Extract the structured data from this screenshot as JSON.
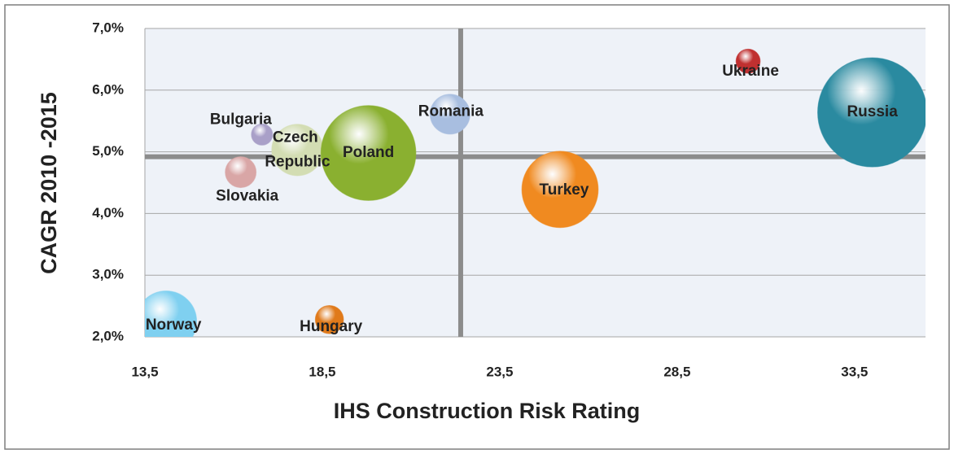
{
  "chart_data": {
    "type": "bubble",
    "xlabel": "IHS Construction Risk Rating",
    "ylabel": "CAGR 2010 -2015",
    "xlim": [
      13.5,
      35.5
    ],
    "ylim": [
      2,
      7
    ],
    "xticks": [
      {
        "value": 13.5,
        "label": "13,5"
      },
      {
        "value": 18.5,
        "label": "18,5"
      },
      {
        "value": 23.5,
        "label": "23,5"
      },
      {
        "value": 28.5,
        "label": "28,5"
      },
      {
        "value": 33.5,
        "label": "33,5"
      }
    ],
    "yticks": [
      {
        "value": 2,
        "label": "2,0%"
      },
      {
        "value": 3,
        "label": "3,0%"
      },
      {
        "value": 4,
        "label": "4,0%"
      },
      {
        "value": 5,
        "label": "5,0%"
      },
      {
        "value": 6,
        "label": "6,0%"
      },
      {
        "value": 7,
        "label": "7,0%"
      }
    ],
    "grid": true,
    "reference_lines": {
      "x": 22.4,
      "y": 4.92
    },
    "points": [
      {
        "name": "Norway",
        "x": 14.1,
        "y": 2.25,
        "size": 14,
        "color": "#7fd0f0"
      },
      {
        "name": "Hungary",
        "x": 18.7,
        "y": 2.28,
        "size": 3,
        "color": "#e07a1a"
      },
      {
        "name": "Slovakia",
        "x": 16.2,
        "y": 4.67,
        "size": 3.6,
        "color": "#d9a6a6"
      },
      {
        "name": "Bulgaria",
        "x": 16.8,
        "y": 5.28,
        "size": 1.7,
        "color": "#a9a0c8"
      },
      {
        "name": "Czech Republic",
        "x": 17.8,
        "y": 5.03,
        "size": 10,
        "color": "#d3ddb3"
      },
      {
        "name": "Poland",
        "x": 19.8,
        "y": 4.98,
        "size": 34,
        "color": "#8ab030"
      },
      {
        "name": "Romania",
        "x": 22.1,
        "y": 5.61,
        "size": 6,
        "color": "#a8bee0"
      },
      {
        "name": "Turkey",
        "x": 25.2,
        "y": 4.39,
        "size": 22,
        "color": "#f08a20"
      },
      {
        "name": "Ukraine",
        "x": 30.5,
        "y": 6.47,
        "size": 2.2,
        "color": "#c03030"
      },
      {
        "name": "Russia",
        "x": 34.0,
        "y": 5.64,
        "size": 45,
        "color": "#2a8aa0"
      }
    ]
  }
}
